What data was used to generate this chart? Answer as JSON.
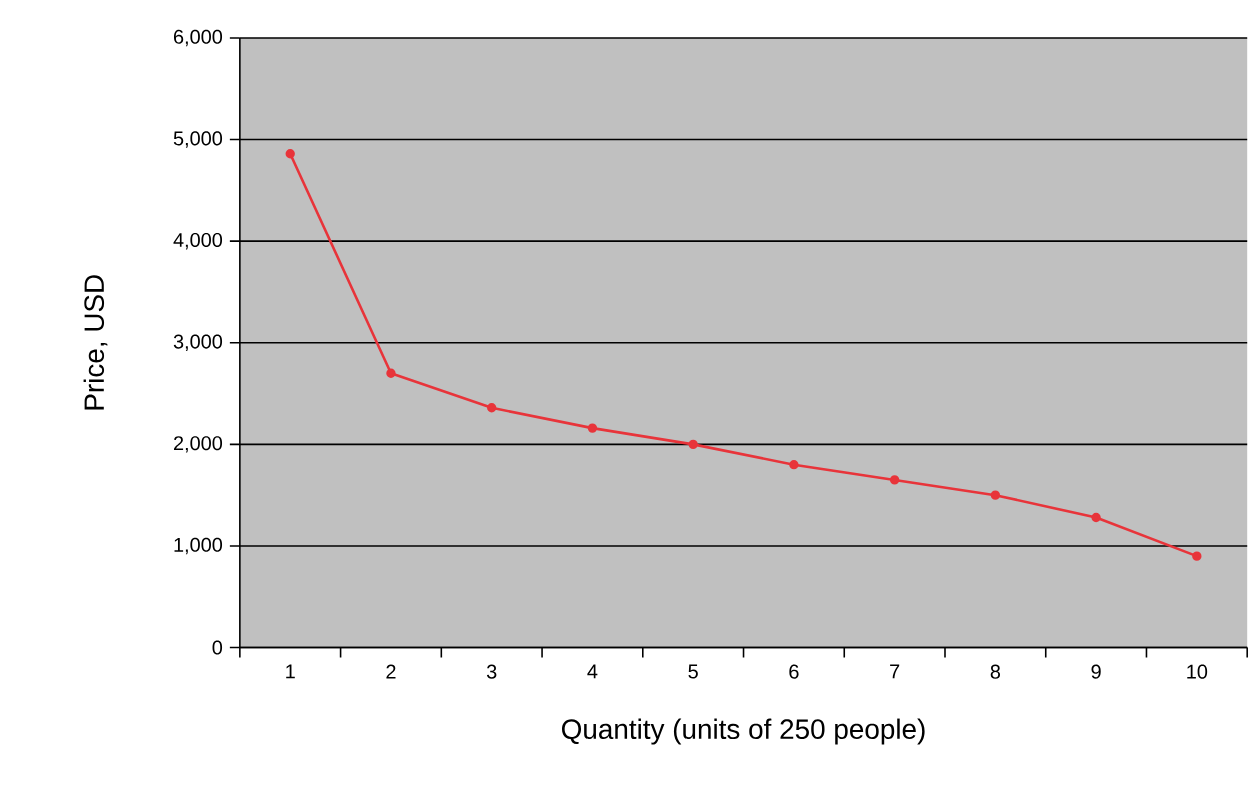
{
  "chart_data": {
    "type": "line",
    "xlabel": "Quantity (units of 250 people)",
    "ylabel": "Price, USD",
    "categories": [
      "1",
      "2",
      "3",
      "4",
      "5",
      "6",
      "7",
      "8",
      "9",
      "10"
    ],
    "series": [
      {
        "color": "#e8343a",
        "values": [
          4860,
          2700,
          2360,
          2160,
          2000,
          1800,
          1650,
          1500,
          1280,
          900
        ]
      }
    ],
    "ylim": [
      0,
      6000
    ],
    "yticks": [
      {
        "value": 0,
        "label": "0"
      },
      {
        "value": 1000,
        "label": "1,000"
      },
      {
        "value": 2000,
        "label": "2,000"
      },
      {
        "value": 3000,
        "label": "3,000"
      },
      {
        "value": 4000,
        "label": "4,000"
      },
      {
        "value": 5000,
        "label": "5,000"
      },
      {
        "value": 6000,
        "label": "6,000"
      }
    ],
    "grid": "y",
    "marker": "circle",
    "line_style": "solid"
  }
}
